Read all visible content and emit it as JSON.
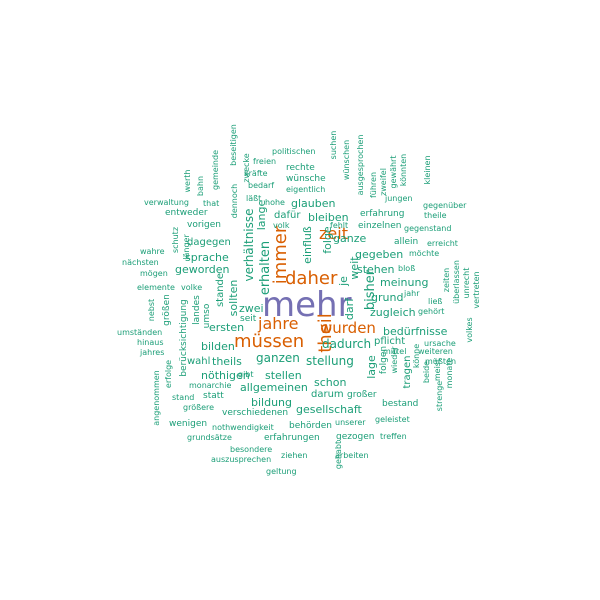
{
  "palette": {
    "level1": "#7570b3",
    "level2": "#d95f02",
    "level3": "#1b9e77"
  },
  "words": [
    {
      "text": "mehr",
      "level": 1
    },
    {
      "text": "daher",
      "level": 2
    },
    {
      "text": "müssen",
      "level": 2
    },
    {
      "text": "jahre",
      "level": 2
    },
    {
      "text": "immer",
      "level": 2
    },
    {
      "text": "theil",
      "level": 2
    },
    {
      "text": "zeit",
      "level": 2
    },
    {
      "text": "wurden",
      "level": 2
    },
    {
      "text": "erhalten",
      "level": 3
    },
    {
      "text": "verhältnisse",
      "level": 3
    },
    {
      "text": "lange",
      "level": 3
    },
    {
      "text": "einfluß",
      "level": 3
    },
    {
      "text": "folge",
      "level": 3
    },
    {
      "text": "je",
      "level": 3
    },
    {
      "text": "weit",
      "level": 3
    },
    {
      "text": "bisher",
      "level": 3
    },
    {
      "text": "darf",
      "level": 3
    },
    {
      "text": "dadurch",
      "level": 3
    },
    {
      "text": "ganzen",
      "level": 3
    },
    {
      "text": "zwei",
      "level": 3
    },
    {
      "text": "sollten",
      "level": 3
    },
    {
      "text": "stellung",
      "level": 3
    },
    {
      "text": "ganze",
      "level": 3
    },
    {
      "text": "bleiben",
      "level": 3
    },
    {
      "text": "glauben",
      "level": 3
    },
    {
      "text": "gegeben",
      "level": 3
    },
    {
      "text": "stehen",
      "level": 3
    },
    {
      "text": "meinung",
      "level": 3
    },
    {
      "text": "grund",
      "level": 3
    },
    {
      "text": "zugleich",
      "level": 3
    },
    {
      "text": "bedürfnisse",
      "level": 3
    },
    {
      "text": "pflicht",
      "level": 3
    },
    {
      "text": "ersten",
      "level": 3
    },
    {
      "text": "seit",
      "level": 3
    },
    {
      "text": "bilden",
      "level": 3
    },
    {
      "text": "theils",
      "level": 3
    },
    {
      "text": "wahl",
      "level": 3
    },
    {
      "text": "nöthigen",
      "level": 3
    },
    {
      "text": "allgemeinen",
      "level": 3
    },
    {
      "text": "stellen",
      "level": 3
    },
    {
      "text": "schon",
      "level": 3
    },
    {
      "text": "gesellschaft",
      "level": 3
    },
    {
      "text": "darum",
      "level": 3
    },
    {
      "text": "bildung",
      "level": 3
    },
    {
      "text": "lage",
      "level": 3
    },
    {
      "text": "folgen",
      "level": 3
    },
    {
      "text": "tragen",
      "level": 3
    },
    {
      "text": "sprache",
      "level": 3
    },
    {
      "text": "geworden",
      "level": 3
    },
    {
      "text": "dagegen",
      "level": 3
    },
    {
      "text": "stande",
      "level": 3
    },
    {
      "text": "landes",
      "level": 3
    },
    {
      "text": "umso",
      "level": 3
    },
    {
      "text": "dafür",
      "level": 3
    },
    {
      "text": "berücksichtigung",
      "level": 3
    },
    {
      "text": "größen",
      "level": 3
    },
    {
      "text": "erfahrung",
      "level": 3
    },
    {
      "text": "einzelnen",
      "level": 3
    },
    {
      "text": "allein",
      "level": 3
    },
    {
      "text": "politischen",
      "level": 3
    },
    {
      "text": "freien",
      "level": 3
    },
    {
      "text": "kräfte",
      "level": 3
    },
    {
      "text": "rechte",
      "level": 3
    },
    {
      "text": "wünsche",
      "level": 3
    },
    {
      "text": "eigentlich",
      "level": 3
    },
    {
      "text": "bedarf",
      "level": 3
    },
    {
      "text": "läßt",
      "level": 3
    },
    {
      "text": "hohe",
      "level": 3
    },
    {
      "text": "gemeinde",
      "level": 3
    },
    {
      "text": "beseitigen",
      "level": 3
    },
    {
      "text": "zwecke",
      "level": 3
    },
    {
      "text": "suchen",
      "level": 3
    },
    {
      "text": "wünschen",
      "level": 3
    },
    {
      "text": "ausgesprochen",
      "level": 3
    },
    {
      "text": "führen",
      "level": 3
    },
    {
      "text": "zweifel",
      "level": 3
    },
    {
      "text": "gewährt",
      "level": 3
    },
    {
      "text": "könnten",
      "level": 3
    },
    {
      "text": "kleinen",
      "level": 3
    },
    {
      "text": "jungen",
      "level": 3
    },
    {
      "text": "gegenüber",
      "level": 3
    },
    {
      "text": "theile",
      "level": 3
    },
    {
      "text": "gegenstand",
      "level": 3
    },
    {
      "text": "erreicht",
      "level": 3
    },
    {
      "text": "möchte",
      "level": 3
    },
    {
      "text": "bloß",
      "level": 3
    },
    {
      "text": "zeiten",
      "level": 3
    },
    {
      "text": "überlassen",
      "level": 3
    },
    {
      "text": "unrecht",
      "level": 3
    },
    {
      "text": "vertreten",
      "level": 3
    },
    {
      "text": "ließ",
      "level": 3
    },
    {
      "text": "jahr",
      "level": 3
    },
    {
      "text": "gehört",
      "level": 3
    },
    {
      "text": "volkes",
      "level": 3
    },
    {
      "text": "ursache",
      "level": 3
    },
    {
      "text": "weiteren",
      "level": 3
    },
    {
      "text": "mittel",
      "level": 3
    },
    {
      "text": "müßten",
      "level": 3
    },
    {
      "text": "könne",
      "level": 3
    },
    {
      "text": "beide",
      "level": 3
    },
    {
      "text": "meist",
      "level": 3
    },
    {
      "text": "monate",
      "level": 3
    },
    {
      "text": "strenge",
      "level": 3
    },
    {
      "text": "wieder",
      "level": 3
    },
    {
      "text": "fehlt",
      "level": 3
    },
    {
      "text": "volk",
      "level": 3
    },
    {
      "text": "werth",
      "level": 3
    },
    {
      "text": "bahn",
      "level": 3
    },
    {
      "text": "verwaltung",
      "level": 3
    },
    {
      "text": "that",
      "level": 3
    },
    {
      "text": "entweder",
      "level": 3
    },
    {
      "text": "vorigen",
      "level": 3
    },
    {
      "text": "dennoch",
      "level": 3
    },
    {
      "text": "wahre",
      "level": 3
    },
    {
      "text": "nächsten",
      "level": 3
    },
    {
      "text": "mögen",
      "level": 3
    },
    {
      "text": "schutz",
      "level": 3
    },
    {
      "text": "länger",
      "level": 3
    },
    {
      "text": "elemente",
      "level": 3
    },
    {
      "text": "volke",
      "level": 3
    },
    {
      "text": "umständen",
      "level": 3
    },
    {
      "text": "hinaus",
      "level": 3
    },
    {
      "text": "jahres",
      "level": 3
    },
    {
      "text": "nebst",
      "level": 3
    },
    {
      "text": "erfolge",
      "level": 3
    },
    {
      "text": "angenommen",
      "level": 3
    },
    {
      "text": "monarchie",
      "level": 3
    },
    {
      "text": "stand",
      "level": 3
    },
    {
      "text": "statt",
      "level": 3
    },
    {
      "text": "größere",
      "level": 3
    },
    {
      "text": "gibt",
      "level": 3
    },
    {
      "text": "verschiedenen",
      "level": 3
    },
    {
      "text": "wenigen",
      "level": 3
    },
    {
      "text": "nothwendigkeit",
      "level": 3
    },
    {
      "text": "grundsätze",
      "level": 3
    },
    {
      "text": "behörden",
      "level": 3
    },
    {
      "text": "erfahrungen",
      "level": 3
    },
    {
      "text": "besondere",
      "level": 3
    },
    {
      "text": "auszusprechen",
      "level": 3
    },
    {
      "text": "ziehen",
      "level": 3
    },
    {
      "text": "geltung",
      "level": 3
    },
    {
      "text": "gehabt",
      "level": 3
    },
    {
      "text": "arbeiten",
      "level": 3
    },
    {
      "text": "gezogen",
      "level": 3
    },
    {
      "text": "treffen",
      "level": 3
    },
    {
      "text": "unserer",
      "level": 3
    },
    {
      "text": "geleistet",
      "level": 3
    },
    {
      "text": "großer",
      "level": 3
    },
    {
      "text": "bestand",
      "level": 3
    }
  ]
}
